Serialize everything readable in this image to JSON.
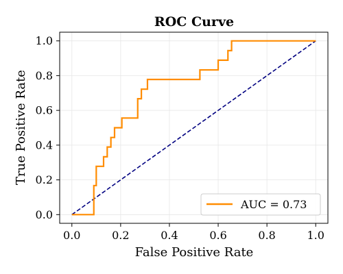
{
  "chart_data": {
    "type": "line",
    "title": "ROC Curve",
    "xlabel": "False Positive Rate",
    "ylabel": "True Positive Rate",
    "xlim": [
      -0.05,
      1.05
    ],
    "ylim": [
      -0.05,
      1.05
    ],
    "grid": true,
    "legend_position": "bottom-right",
    "xticks": [
      "0.0",
      "0.2",
      "0.4",
      "0.6",
      "0.8",
      "1.0"
    ],
    "yticks": [
      "0.0",
      "0.2",
      "0.4",
      "0.6",
      "0.8",
      "1.0"
    ],
    "series": [
      {
        "name": "AUC = 0.73",
        "color": "#ff8c00",
        "style": "solid",
        "x": [
          0.0,
          0.09,
          0.09,
          0.1,
          0.1,
          0.13,
          0.13,
          0.145,
          0.145,
          0.16,
          0.16,
          0.175,
          0.175,
          0.205,
          0.205,
          0.27,
          0.27,
          0.285,
          0.285,
          0.31,
          0.31,
          0.525,
          0.525,
          0.6,
          0.6,
          0.64,
          0.64,
          0.655,
          0.655,
          1.0
        ],
        "y": [
          0.0,
          0.0,
          0.167,
          0.167,
          0.278,
          0.278,
          0.333,
          0.333,
          0.389,
          0.389,
          0.444,
          0.444,
          0.5,
          0.5,
          0.556,
          0.556,
          0.667,
          0.667,
          0.722,
          0.722,
          0.778,
          0.778,
          0.833,
          0.833,
          0.889,
          0.889,
          0.944,
          0.944,
          1.0,
          1.0
        ]
      },
      {
        "name": "",
        "color": "#000080",
        "style": "dashed",
        "x": [
          0.0,
          1.0
        ],
        "y": [
          0.0,
          1.0
        ]
      }
    ]
  }
}
